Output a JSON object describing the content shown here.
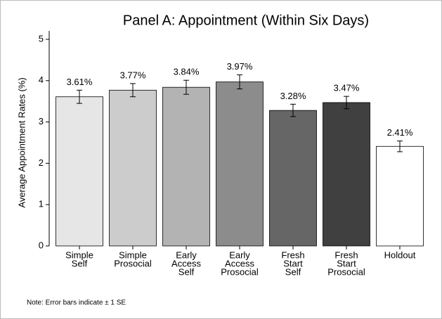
{
  "chart_data": {
    "type": "bar",
    "title": "Panel A: Appointment (Within Six Days)",
    "y_label": "Average Appointment Rates (%)",
    "note": "Note: Error bars indicate ± 1 SE",
    "categories": [
      [
        "Simple",
        "Self"
      ],
      [
        "Simple",
        "Prosocial"
      ],
      [
        "Early",
        "Access",
        "Self"
      ],
      [
        "Early",
        "Access",
        "Prosocial"
      ],
      [
        "Fresh",
        "Start",
        "Self"
      ],
      [
        "Fresh",
        "Start",
        "Prosocial"
      ],
      [
        "Holdout"
      ]
    ],
    "values": [
      3.61,
      3.77,
      3.84,
      3.97,
      3.28,
      3.47,
      2.41
    ],
    "value_labels": [
      "3.61%",
      "3.77%",
      "3.84%",
      "3.97%",
      "3.28%",
      "3.47%",
      "2.41%"
    ],
    "errors": [
      0.16,
      0.16,
      0.17,
      0.17,
      0.15,
      0.15,
      0.13
    ],
    "colors": [
      "#e6e6e6",
      "#cccccc",
      "#b3b3b3",
      "#8c8c8c",
      "#666666",
      "#404040",
      "#ffffff"
    ],
    "ylim": [
      0,
      5
    ],
    "yticks": [
      0,
      1,
      2,
      3,
      4,
      5
    ],
    "grid": false
  }
}
